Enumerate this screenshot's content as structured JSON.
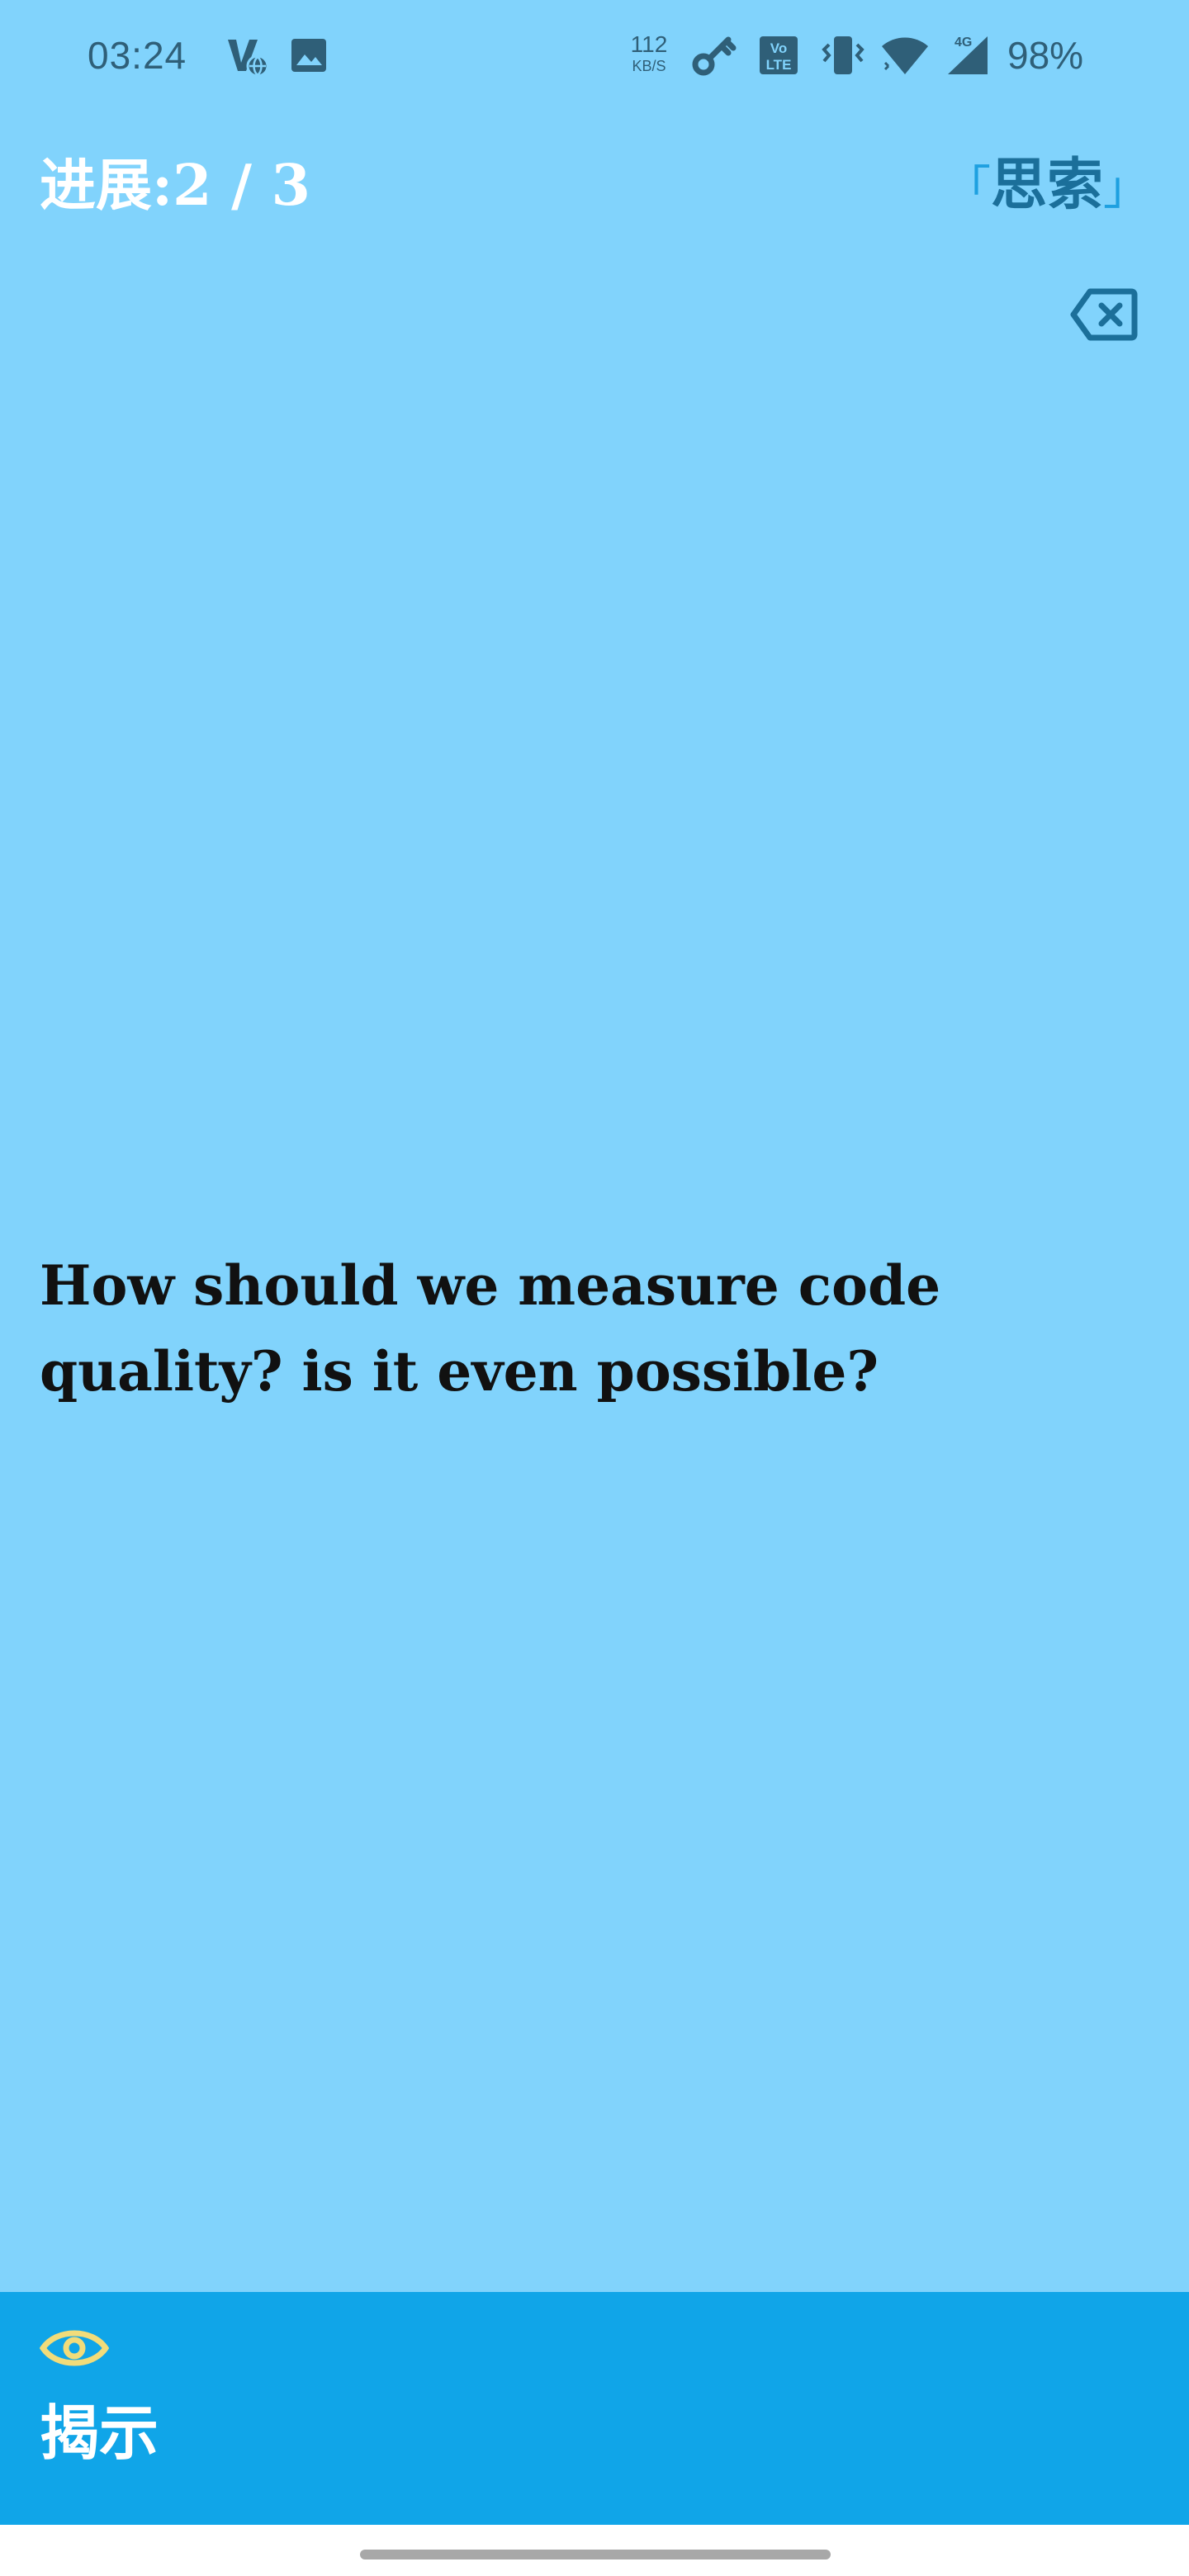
{
  "status_bar": {
    "time": "03:24",
    "net_speed_value": "112",
    "net_speed_unit": "KB/S",
    "network_type": "4G",
    "battery": "98%",
    "icons": [
      "vpn-globe-icon",
      "image-icon",
      "key-icon",
      "volte-icon",
      "vibrate-icon",
      "wifi-icon",
      "cell-signal-icon"
    ]
  },
  "header": {
    "progress_label": "进展:",
    "progress_value": "2 / 3",
    "mode_open": "「",
    "mode_label": "思索",
    "mode_close": "」",
    "delete_icon": "backspace-icon"
  },
  "card": {
    "question": "How should we measure code quality? is it even possible?"
  },
  "bottom_bar": {
    "reveal_icon": "eye-icon",
    "reveal_label": "揭示"
  },
  "colors": {
    "background": "#81d3fc",
    "bottom_bar": "#10a5e8",
    "accent": "#1b6f9a",
    "eye_icon": "#f2dc7a"
  }
}
